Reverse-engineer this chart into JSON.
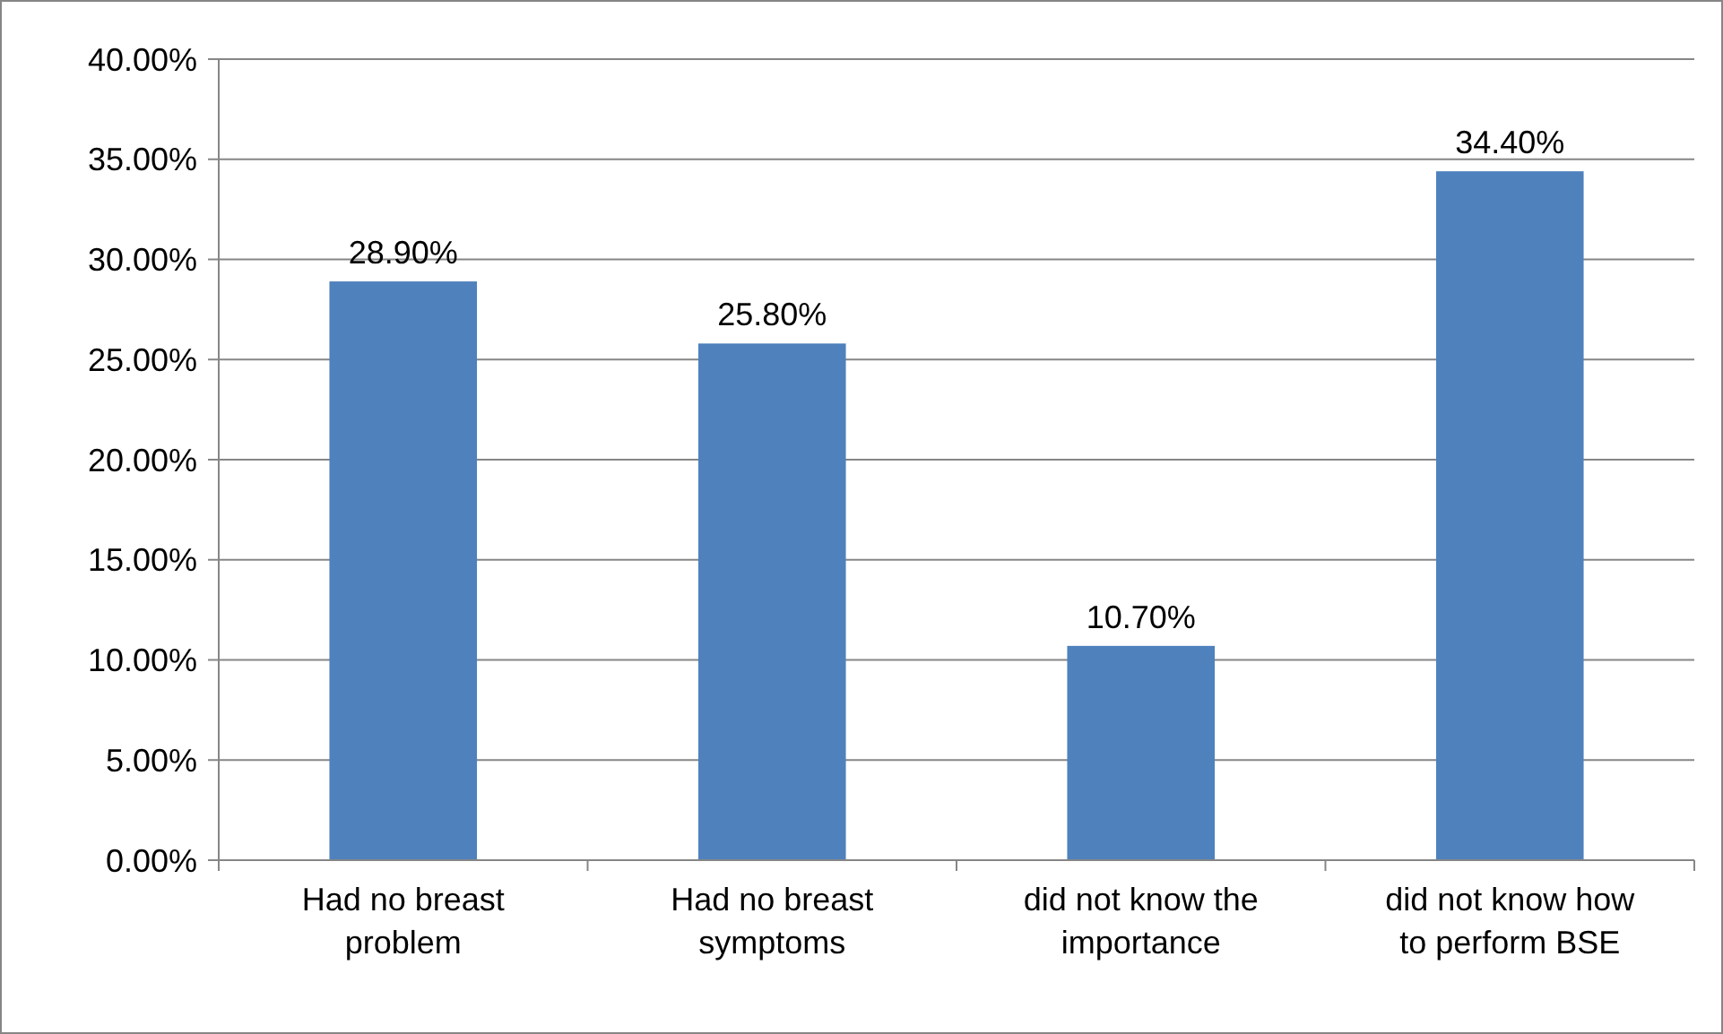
{
  "chart_data": {
    "type": "bar",
    "categories": [
      "Had no breast problem",
      "Had no breast symptoms",
      "did not know the importance",
      "did not know how to perform BSE"
    ],
    "values": [
      28.9,
      25.8,
      10.7,
      34.4
    ],
    "value_labels": [
      "28.90%",
      "25.80%",
      "10.70%",
      "34.40%"
    ],
    "color": "#4f81bd",
    "ylim": [
      0,
      40
    ],
    "yticks": [
      {
        "value": 0,
        "label": "0.00%"
      },
      {
        "value": 5,
        "label": "5.00%"
      },
      {
        "value": 10,
        "label": "10.00%"
      },
      {
        "value": 15,
        "label": "15.00%"
      },
      {
        "value": 20,
        "label": "20.00%"
      },
      {
        "value": 25,
        "label": "25.00%"
      },
      {
        "value": 30,
        "label": "30.00%"
      },
      {
        "value": 35,
        "label": "35.00%"
      },
      {
        "value": 40,
        "label": "40.00%"
      }
    ],
    "grid": "y"
  }
}
